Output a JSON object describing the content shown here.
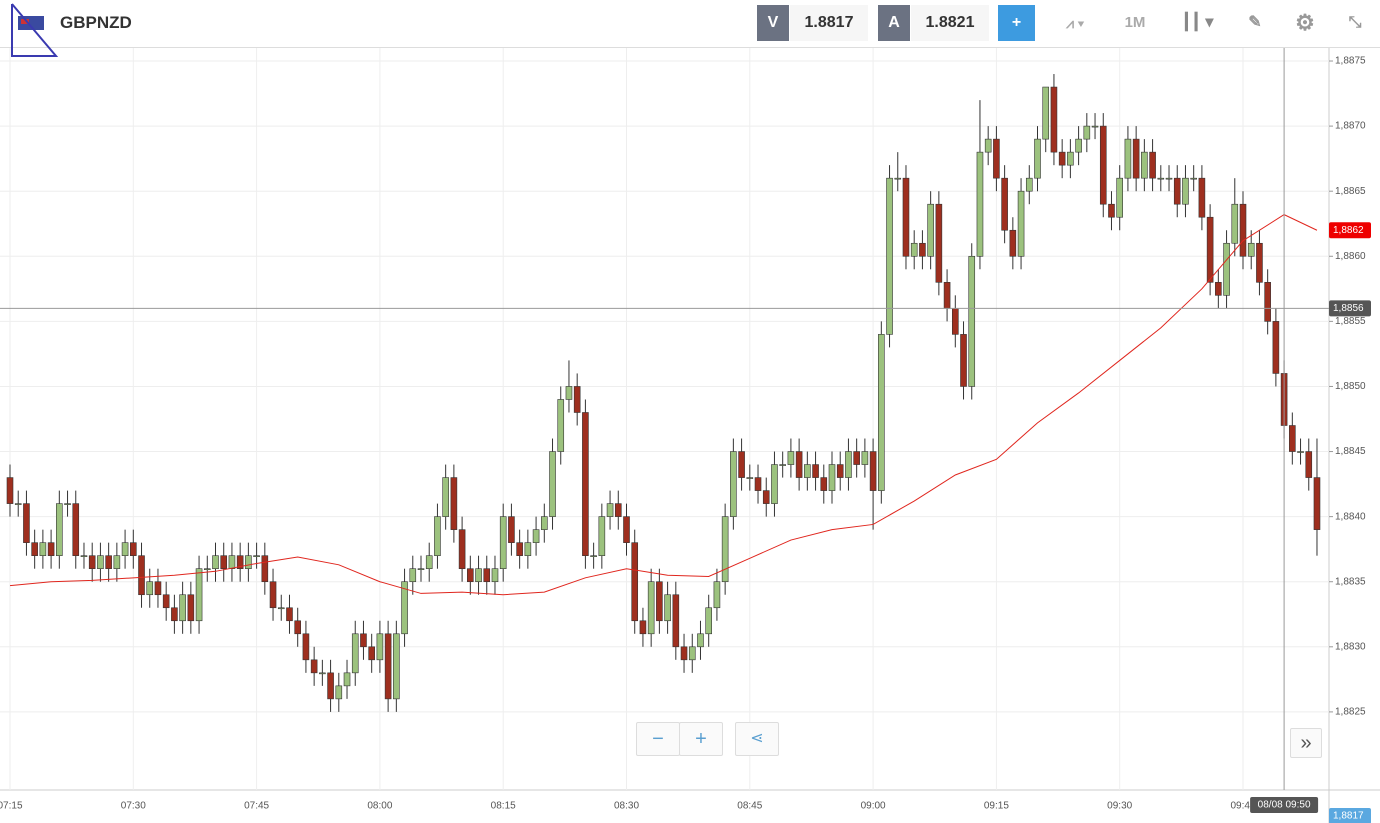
{
  "header": {
    "symbol": "GBPNZD",
    "bid_label": "V",
    "bid": "1.8817",
    "ask_label": "A",
    "ask": "1.8821",
    "timeframe": "1M"
  },
  "chart_data": {
    "type": "candlestick",
    "x": [
      "07:15",
      "07:16",
      "07:17",
      "07:18",
      "07:19",
      "07:20",
      "07:21",
      "07:22",
      "07:23",
      "07:24",
      "07:25",
      "07:26",
      "07:27",
      "07:28",
      "07:29",
      "07:30",
      "07:31",
      "07:32",
      "07:33",
      "07:34",
      "07:35",
      "07:36",
      "07:37",
      "07:38",
      "07:39",
      "07:40",
      "07:41",
      "07:42",
      "07:43",
      "07:44",
      "07:45",
      "07:46",
      "07:47",
      "07:48",
      "07:49",
      "07:50",
      "07:51",
      "07:52",
      "07:53",
      "07:54",
      "07:55",
      "07:56",
      "07:57",
      "07:58",
      "07:59",
      "08:00",
      "08:01",
      "08:02",
      "08:03",
      "08:04",
      "08:05",
      "08:06",
      "08:07",
      "08:08",
      "08:09",
      "08:10",
      "08:11",
      "08:12",
      "08:13",
      "08:14",
      "08:15",
      "08:16",
      "08:17",
      "08:18",
      "08:19",
      "08:20",
      "08:21",
      "08:22",
      "08:23",
      "08:24",
      "08:25",
      "08:26",
      "08:27",
      "08:28",
      "08:29",
      "08:30",
      "08:31",
      "08:32",
      "08:33",
      "08:34",
      "08:35",
      "08:36",
      "08:37",
      "08:38",
      "08:39",
      "08:40",
      "08:41",
      "08:42",
      "08:43",
      "08:44",
      "08:45",
      "08:46",
      "08:47",
      "08:48",
      "08:49",
      "08:50",
      "08:51",
      "08:52",
      "08:53",
      "08:54",
      "08:55",
      "08:56",
      "08:57",
      "08:58",
      "08:59",
      "09:00",
      "09:01",
      "09:02",
      "09:03",
      "09:04",
      "09:05",
      "09:06",
      "09:07",
      "09:08",
      "09:09",
      "09:10",
      "09:11",
      "09:12",
      "09:13",
      "09:14",
      "09:15",
      "09:16",
      "09:17",
      "09:18",
      "09:19",
      "09:20",
      "09:21",
      "09:22",
      "09:23",
      "09:24",
      "09:25",
      "09:26",
      "09:27",
      "09:28",
      "09:29",
      "09:30",
      "09:31",
      "09:32",
      "09:33",
      "09:34",
      "09:35",
      "09:36",
      "09:37",
      "09:38",
      "09:39",
      "09:40",
      "09:41",
      "09:42",
      "09:43",
      "09:44",
      "09:45",
      "09:46",
      "09:47",
      "09:48",
      "09:49",
      "09:50",
      "09:51",
      "09:52",
      "09:53",
      "09:54"
    ],
    "open": [
      1.8843,
      1.8841,
      1.8841,
      1.8838,
      1.8837,
      1.8838,
      1.8837,
      1.8841,
      1.8841,
      1.8837,
      1.8837,
      1.8836,
      1.8837,
      1.8836,
      1.8837,
      1.8838,
      1.8837,
      1.8834,
      1.8835,
      1.8834,
      1.8833,
      1.8832,
      1.8834,
      1.8832,
      1.8836,
      1.8836,
      1.8837,
      1.8836,
      1.8837,
      1.8836,
      1.8837,
      1.8837,
      1.8835,
      1.8833,
      1.8833,
      1.8832,
      1.8831,
      1.8829,
      1.8828,
      1.8828,
      1.8826,
      1.8827,
      1.8828,
      1.8831,
      1.883,
      1.8829,
      1.8831,
      1.8826,
      1.8831,
      1.8835,
      1.8836,
      1.8836,
      1.8837,
      1.884,
      1.8843,
      1.8839,
      1.8836,
      1.8835,
      1.8836,
      1.8835,
      1.8836,
      1.884,
      1.8838,
      1.8837,
      1.8838,
      1.8839,
      1.884,
      1.8845,
      1.8849,
      1.885,
      1.8848,
      1.8837,
      1.8837,
      1.884,
      1.8841,
      1.884,
      1.8838,
      1.8832,
      1.8831,
      1.8835,
      1.8832,
      1.8834,
      1.883,
      1.8829,
      1.883,
      1.8831,
      1.8833,
      1.8835,
      1.884,
      1.8845,
      1.8843,
      1.8843,
      1.8842,
      1.8841,
      1.8844,
      1.8844,
      1.8845,
      1.8843,
      1.8844,
      1.8843,
      1.8842,
      1.8844,
      1.8843,
      1.8845,
      1.8844,
      1.8845,
      1.8842,
      1.8854,
      1.8866,
      1.8866,
      1.886,
      1.8861,
      1.886,
      1.8864,
      1.8858,
      1.8856,
      1.8854,
      1.885,
      1.886,
      1.8868,
      1.8869,
      1.8866,
      1.8862,
      1.886,
      1.8865,
      1.8866,
      1.8869,
      1.8873,
      1.8868,
      1.8867,
      1.8868,
      1.8869,
      1.887,
      1.887,
      1.8864,
      1.8863,
      1.8866,
      1.8869,
      1.8866,
      1.8868,
      1.8866,
      1.8866,
      1.8866,
      1.8864,
      1.8866,
      1.8866,
      1.8863,
      1.8858,
      1.8857,
      1.8861,
      1.8864,
      1.886,
      1.8861,
      1.8858,
      1.8855,
      1.8851,
      1.8847,
      1.8845,
      1.8845,
      1.8843
    ],
    "high": [
      1.8844,
      1.8842,
      1.8842,
      1.8839,
      1.8839,
      1.8839,
      1.8842,
      1.8842,
      1.8842,
      1.8838,
      1.8838,
      1.8838,
      1.8838,
      1.8838,
      1.8839,
      1.8839,
      1.8838,
      1.8836,
      1.8836,
      1.8835,
      1.8834,
      1.8835,
      1.8835,
      1.8837,
      1.8837,
      1.8838,
      1.8838,
      1.8838,
      1.8838,
      1.8838,
      1.8838,
      1.8838,
      1.8836,
      1.8834,
      1.8834,
      1.8833,
      1.8832,
      1.883,
      1.8829,
      1.8829,
      1.8828,
      1.8829,
      1.8832,
      1.8832,
      1.8831,
      1.8832,
      1.8832,
      1.8832,
      1.8836,
      1.8837,
      1.8837,
      1.8838,
      1.8841,
      1.8844,
      1.8844,
      1.884,
      1.8837,
      1.8837,
      1.8837,
      1.8837,
      1.8841,
      1.8841,
      1.8839,
      1.8839,
      1.884,
      1.8841,
      1.8846,
      1.885,
      1.8852,
      1.8851,
      1.8849,
      1.8838,
      1.8841,
      1.8842,
      1.8842,
      1.8841,
      1.8839,
      1.8833,
      1.8836,
      1.8836,
      1.8835,
      1.8835,
      1.8831,
      1.8831,
      1.8832,
      1.8834,
      1.8836,
      1.8841,
      1.8846,
      1.8846,
      1.8844,
      1.8844,
      1.8843,
      1.8845,
      1.8845,
      1.8846,
      1.8846,
      1.8845,
      1.8845,
      1.8844,
      1.8845,
      1.8845,
      1.8846,
      1.8846,
      1.8846,
      1.8846,
      1.8855,
      1.8867,
      1.8868,
      1.8867,
      1.8862,
      1.8862,
      1.8865,
      1.8865,
      1.8859,
      1.8857,
      1.8855,
      1.8861,
      1.8872,
      1.887,
      1.887,
      1.8867,
      1.8863,
      1.8866,
      1.8867,
      1.887,
      1.8873,
      1.8874,
      1.8869,
      1.8869,
      1.887,
      1.8871,
      1.8871,
      1.8871,
      1.8865,
      1.8867,
      1.887,
      1.887,
      1.8869,
      1.8869,
      1.8867,
      1.8867,
      1.8867,
      1.8867,
      1.8867,
      1.8867,
      1.8864,
      1.8859,
      1.8862,
      1.8866,
      1.8865,
      1.8862,
      1.8862,
      1.8859,
      1.8856,
      1.8852,
      1.8848,
      1.8846,
      1.8846,
      1.8846
    ],
    "low": [
      1.884,
      1.884,
      1.8837,
      1.8836,
      1.8836,
      1.8836,
      1.8836,
      1.884,
      1.8836,
      1.8836,
      1.8835,
      1.8835,
      1.8835,
      1.8835,
      1.8836,
      1.8836,
      1.8833,
      1.8833,
      1.8833,
      1.8832,
      1.8831,
      1.8831,
      1.8831,
      1.8831,
      1.8835,
      1.8835,
      1.8835,
      1.8835,
      1.8835,
      1.8835,
      1.8836,
      1.8834,
      1.8832,
      1.8832,
      1.8831,
      1.883,
      1.8828,
      1.8827,
      1.8827,
      1.8825,
      1.8825,
      1.8826,
      1.8827,
      1.8829,
      1.8828,
      1.8828,
      1.8825,
      1.8825,
      1.883,
      1.8834,
      1.8835,
      1.8835,
      1.8836,
      1.8839,
      1.8838,
      1.8835,
      1.8834,
      1.8834,
      1.8834,
      1.8834,
      1.8835,
      1.8837,
      1.8836,
      1.8836,
      1.8837,
      1.8838,
      1.8839,
      1.8844,
      1.8848,
      1.8847,
      1.8836,
      1.8836,
      1.8836,
      1.8839,
      1.8839,
      1.8837,
      1.8831,
      1.883,
      1.883,
      1.8831,
      1.8831,
      1.8829,
      1.8828,
      1.8828,
      1.8829,
      1.883,
      1.8832,
      1.8834,
      1.8839,
      1.8842,
      1.8842,
      1.8841,
      1.884,
      1.884,
      1.8843,
      1.8843,
      1.8842,
      1.8842,
      1.8842,
      1.8841,
      1.8841,
      1.8842,
      1.8842,
      1.8843,
      1.8843,
      1.8839,
      1.8841,
      1.8853,
      1.8865,
      1.8859,
      1.8859,
      1.8859,
      1.8859,
      1.8857,
      1.8855,
      1.8853,
      1.8849,
      1.8849,
      1.8859,
      1.8867,
      1.8865,
      1.8861,
      1.8859,
      1.8859,
      1.8864,
      1.8865,
      1.8868,
      1.8867,
      1.8866,
      1.8866,
      1.8867,
      1.8868,
      1.8869,
      1.8863,
      1.8862,
      1.8862,
      1.8865,
      1.8865,
      1.8865,
      1.8865,
      1.8865,
      1.8865,
      1.8863,
      1.8863,
      1.8865,
      1.8862,
      1.8857,
      1.8856,
      1.8856,
      1.886,
      1.8859,
      1.8859,
      1.8857,
      1.8854,
      1.885,
      1.8846,
      1.8844,
      1.8844,
      1.8842,
      1.8837
    ],
    "close": [
      1.8841,
      1.8841,
      1.8838,
      1.8837,
      1.8838,
      1.8837,
      1.8841,
      1.8841,
      1.8837,
      1.8837,
      1.8836,
      1.8837,
      1.8836,
      1.8837,
      1.8838,
      1.8837,
      1.8834,
      1.8835,
      1.8834,
      1.8833,
      1.8832,
      1.8834,
      1.8832,
      1.8836,
      1.8836,
      1.8837,
      1.8836,
      1.8837,
      1.8836,
      1.8837,
      1.8837,
      1.8835,
      1.8833,
      1.8833,
      1.8832,
      1.8831,
      1.8829,
      1.8828,
      1.8828,
      1.8826,
      1.8827,
      1.8828,
      1.8831,
      1.883,
      1.8829,
      1.8831,
      1.8826,
      1.8831,
      1.8835,
      1.8836,
      1.8836,
      1.8837,
      1.884,
      1.8843,
      1.8839,
      1.8836,
      1.8835,
      1.8836,
      1.8835,
      1.8836,
      1.884,
      1.8838,
      1.8837,
      1.8838,
      1.8839,
      1.884,
      1.8845,
      1.8849,
      1.885,
      1.8848,
      1.8837,
      1.8837,
      1.884,
      1.8841,
      1.884,
      1.8838,
      1.8832,
      1.8831,
      1.8835,
      1.8832,
      1.8834,
      1.883,
      1.8829,
      1.883,
      1.8831,
      1.8833,
      1.8835,
      1.884,
      1.8845,
      1.8843,
      1.8843,
      1.8842,
      1.8841,
      1.8844,
      1.8844,
      1.8845,
      1.8843,
      1.8844,
      1.8843,
      1.8842,
      1.8844,
      1.8843,
      1.8845,
      1.8844,
      1.8845,
      1.8842,
      1.8854,
      1.8866,
      1.8866,
      1.886,
      1.8861,
      1.886,
      1.8864,
      1.8858,
      1.8856,
      1.8854,
      1.885,
      1.886,
      1.8868,
      1.8869,
      1.8866,
      1.8862,
      1.886,
      1.8865,
      1.8866,
      1.8869,
      1.8873,
      1.8868,
      1.8867,
      1.8868,
      1.8869,
      1.887,
      1.887,
      1.8864,
      1.8863,
      1.8866,
      1.8869,
      1.8866,
      1.8868,
      1.8866,
      1.8866,
      1.8866,
      1.8864,
      1.8866,
      1.8866,
      1.8863,
      1.8858,
      1.8857,
      1.8861,
      1.8864,
      1.886,
      1.8861,
      1.8858,
      1.8855,
      1.8851,
      1.8847,
      1.8845,
      1.8845,
      1.8843,
      1.8839
    ],
    "up_color": "#9cc27e",
    "down_color": "#9e2f1f",
    "overlay": {
      "type": "line",
      "color": "#e0261e",
      "x": [
        "07:15",
        "07:20",
        "07:25",
        "07:30",
        "07:35",
        "07:40",
        "07:45",
        "07:50",
        "07:55",
        "08:00",
        "08:05",
        "08:10",
        "08:15",
        "08:20",
        "08:25",
        "08:30",
        "08:35",
        "08:40",
        "08:45",
        "08:50",
        "08:55",
        "09:00",
        "09:05",
        "09:10",
        "09:15",
        "09:20",
        "09:25",
        "09:30",
        "09:35",
        "09:40",
        "09:45",
        "09:50",
        "09:54"
      ],
      "values": [
        1.88347,
        1.8835,
        1.88351,
        1.88353,
        1.88355,
        1.88358,
        1.88364,
        1.88369,
        1.88363,
        1.8835,
        1.88341,
        1.88342,
        1.8834,
        1.88342,
        1.88353,
        1.8836,
        1.88355,
        1.88354,
        1.88368,
        1.88382,
        1.8839,
        1.88394,
        1.88412,
        1.88432,
        1.88444,
        1.88472,
        1.88495,
        1.8852,
        1.88545,
        1.88575,
        1.88612,
        1.88632,
        1.8862
      ],
      "last_label": "1,8862"
    },
    "ylim": [
      1.8819,
      1.8876
    ],
    "yticks": [
      {
        "value": 1.8825,
        "label": "1,8825"
      },
      {
        "value": 1.883,
        "label": "1,8830"
      },
      {
        "value": 1.8835,
        "label": "1,8835"
      },
      {
        "value": 1.884,
        "label": "1,8840"
      },
      {
        "value": 1.8845,
        "label": "1,8845"
      },
      {
        "value": 1.885,
        "label": "1,8850"
      },
      {
        "value": 1.8855,
        "label": "1,8855"
      },
      {
        "value": 1.886,
        "label": "1,8860"
      },
      {
        "value": 1.8865,
        "label": "1,8865"
      },
      {
        "value": 1.887,
        "label": "1,8870"
      },
      {
        "value": 1.8875,
        "label": "1,8875"
      }
    ],
    "xticks": [
      "07:15",
      "07:30",
      "07:45",
      "08:00",
      "08:15",
      "08:30",
      "08:45",
      "09:00",
      "09:15",
      "09:30",
      "09:45"
    ],
    "grid": true,
    "crosshair": {
      "price": 1.8856,
      "price_label": "1,8856",
      "time": "09:50",
      "time_label": "08/08 09:50"
    },
    "bid_marker": {
      "value": 1.8817,
      "label": "1,8817"
    }
  }
}
